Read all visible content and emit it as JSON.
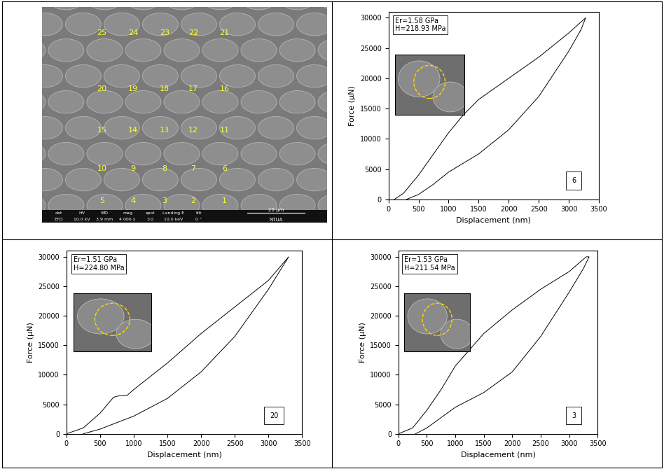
{
  "sem_image": {
    "point_labels": [
      [
        "25",
        "24",
        "23",
        "22",
        "21"
      ],
      [
        "20",
        "19",
        "18",
        "17",
        "16"
      ],
      [
        "15",
        "14",
        "13",
        "12",
        "11"
      ],
      [
        "10",
        "9",
        "8",
        "7",
        "6"
      ],
      [
        "5",
        "4",
        "3",
        "2",
        "1"
      ]
    ],
    "info_headers": [
      "det",
      "HV",
      "WD",
      "mag",
      "spot",
      "Landing E",
      "tilt"
    ],
    "info_values": [
      "ETD",
      "10.0 kV",
      "3.9 mm",
      "4 000 x",
      "3.0",
      "10.0 keV",
      "0 °"
    ],
    "scale_bar": "20 µm",
    "lab": "NTUA"
  },
  "chart_data": [
    {
      "type": "line",
      "annotation": [
        "Er=1.58 GPa",
        "H=218.93 MPa"
      ],
      "label": "6",
      "x_label": "Displacement (nm)",
      "y_label": "Force (µN)",
      "xlim": [
        0,
        3500
      ],
      "xticks": [
        0,
        500,
        1000,
        1500,
        2000,
        2500,
        3000,
        3500
      ],
      "ylim": [
        0,
        31000
      ],
      "yticks": [
        0,
        5000,
        10000,
        15000,
        20000,
        25000,
        30000
      ],
      "series": [
        {
          "color": "#000000",
          "x": [
            100,
            250,
            500,
            750,
            1000,
            1250,
            1500,
            2000,
            2500,
            3000,
            3280,
            3200,
            3000,
            2500,
            2000,
            1500,
            1250,
            1000,
            750,
            500,
            300
          ],
          "values": [
            0,
            1000,
            4000,
            7500,
            11000,
            14000,
            16500,
            20000,
            23500,
            27500,
            30000,
            28000,
            24500,
            17000,
            11500,
            7500,
            6000,
            4500,
            2500,
            800,
            0
          ]
        }
      ]
    },
    {
      "type": "line",
      "annotation": [
        "Er=1.51 GPa",
        "H=224.80 MPa"
      ],
      "label": "20",
      "x_label": "Displacement (nm)",
      "y_label": "Force (µN)",
      "xlim": [
        0,
        3500
      ],
      "xticks": [
        0,
        500,
        1000,
        1500,
        2000,
        2500,
        3000,
        3500
      ],
      "ylim": [
        0,
        31000
      ],
      "yticks": [
        0,
        5000,
        10000,
        15000,
        20000,
        25000,
        30000
      ],
      "series": [
        {
          "color": "#000000",
          "x": [
            0,
            250,
            500,
            700,
            800,
            900,
            1000,
            1500,
            2000,
            2500,
            3000,
            3300,
            3000,
            2500,
            2000,
            1500,
            1000,
            500,
            250
          ],
          "values": [
            0,
            1000,
            3500,
            6200,
            6500,
            6500,
            7500,
            12000,
            17000,
            21500,
            26000,
            30000,
            24500,
            16500,
            10500,
            6000,
            3000,
            800,
            0
          ]
        }
      ]
    },
    {
      "type": "line",
      "annotation": [
        "Er=1.53 GPa",
        "H=211.54 MPa"
      ],
      "label": "3",
      "x_label": "Displacement (nm)",
      "y_label": "Force (µN)",
      "xlim": [
        0,
        3500
      ],
      "xticks": [
        0,
        500,
        1000,
        1500,
        2000,
        2500,
        3000,
        3500
      ],
      "ylim": [
        0,
        31000
      ],
      "yticks": [
        0,
        5000,
        10000,
        15000,
        20000,
        25000,
        30000
      ],
      "series": [
        {
          "color": "#000000",
          "x": [
            0,
            250,
            500,
            750,
            1000,
            1500,
            2000,
            2500,
            3000,
            3300,
            3350,
            3250,
            3000,
            2500,
            2000,
            1500,
            1000,
            500,
            300
          ],
          "values": [
            0,
            1000,
            4000,
            7500,
            11500,
            17000,
            21000,
            24500,
            27500,
            30000,
            30000,
            28000,
            24000,
            16500,
            10500,
            7000,
            4500,
            1000,
            0
          ]
        }
      ]
    }
  ]
}
